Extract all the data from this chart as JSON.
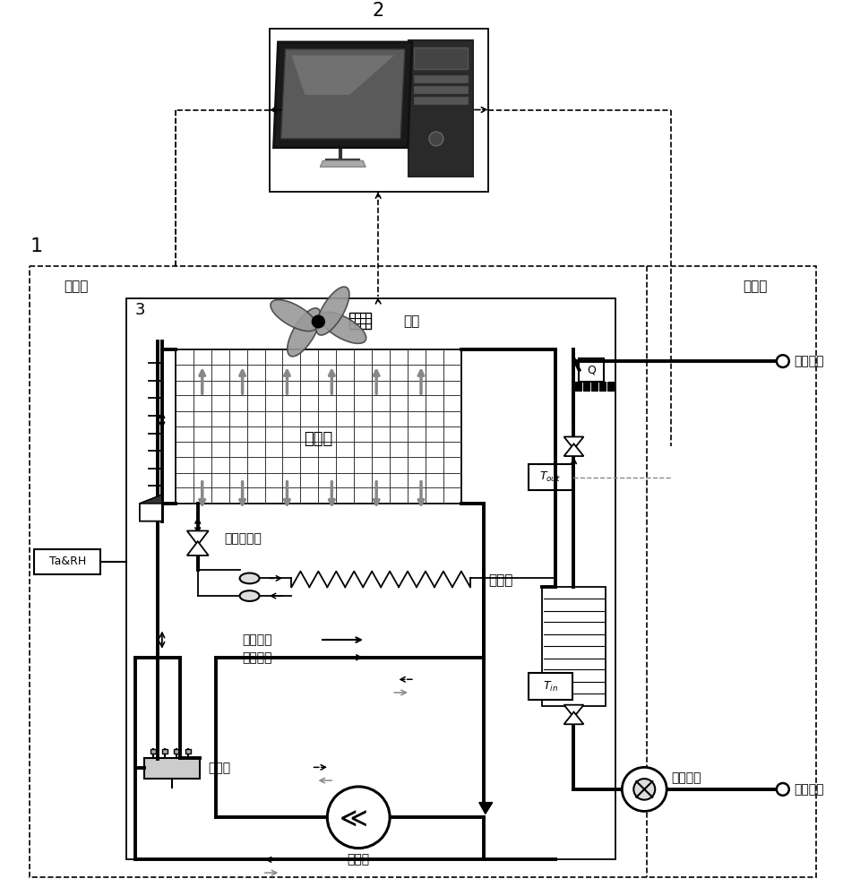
{
  "bg_color": "#ffffff",
  "label_1": "1",
  "label_2": "2",
  "label_3": "3",
  "outdoor_label": "室外侧",
  "indoor_label": "室内侧",
  "indoor_terminal_label": "室内末端",
  "fan_label": "风机",
  "evaporator_label": "蜗发器",
  "expansion_valve_label": "电子膨胀阀",
  "condenser_label": "冷凝器",
  "compressor_label": "压缩机",
  "four_way_valve_label": "四通阀",
  "heating_mode_label": "制热模式",
  "defrost_mode_label": "除霜模式",
  "pump_label": "循环水泵",
  "ta_rh_label": "Ta&RH",
  "fan_symbol": "□□□"
}
